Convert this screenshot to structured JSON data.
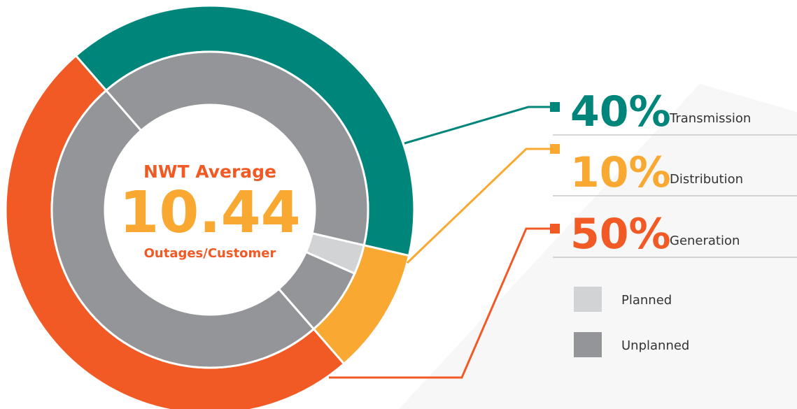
{
  "chart_data": {
    "type": "nested-donut",
    "center": {
      "title": "NWT Average",
      "value": 10.44,
      "label": "Outages/Customer"
    },
    "categories": [
      "Transmission",
      "Distribution",
      "Generation"
    ],
    "values": [
      40,
      10,
      50
    ],
    "value_labels": [
      "40%",
      "10%",
      "50%"
    ],
    "colors": [
      "#00857a",
      "#f9a832",
      "#f15a24"
    ],
    "inner": {
      "series": [
        {
          "name": "Planned",
          "color": "#d1d3d4",
          "values": [
            0,
            3,
            0
          ]
        },
        {
          "name": "Unplanned",
          "color": "#939598",
          "values": [
            40,
            7,
            50
          ]
        }
      ]
    }
  }
}
